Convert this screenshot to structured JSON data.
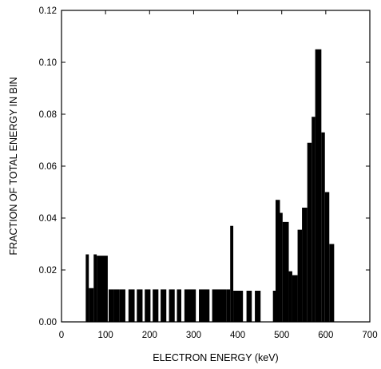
{
  "chart_data": {
    "type": "bar",
    "title": "",
    "xlabel": "ELECTRON ENERGY (keV)",
    "ylabel": "FRACTION OF TOTAL ENERGY IN BIN",
    "xlim": [
      0,
      700
    ],
    "ylim": [
      0,
      0.12
    ],
    "xticks": [
      "0",
      "100",
      "200",
      "300",
      "400",
      "500",
      "600",
      "700"
    ],
    "yticks": [
      "0.00",
      "0.02",
      "0.04",
      "0.06",
      "0.08",
      "0.10",
      "0.12"
    ],
    "grid": false,
    "bar_color": "#000000",
    "bins": [
      {
        "x0": 55,
        "x1": 62,
        "value": 0.026
      },
      {
        "x0": 62,
        "x1": 73,
        "value": 0.013
      },
      {
        "x0": 73,
        "x1": 80,
        "value": 0.026
      },
      {
        "x0": 80,
        "x1": 105,
        "value": 0.0255
      },
      {
        "x0": 107,
        "x1": 118,
        "value": 0.0125
      },
      {
        "x0": 118,
        "x1": 132,
        "value": 0.0125
      },
      {
        "x0": 132,
        "x1": 145,
        "value": 0.0125
      },
      {
        "x0": 152,
        "x1": 166,
        "value": 0.0125
      },
      {
        "x0": 171,
        "x1": 184,
        "value": 0.0125
      },
      {
        "x0": 189,
        "x1": 202,
        "value": 0.0125
      },
      {
        "x0": 207,
        "x1": 220,
        "value": 0.0125
      },
      {
        "x0": 225,
        "x1": 238,
        "value": 0.0125
      },
      {
        "x0": 244,
        "x1": 257,
        "value": 0.0125
      },
      {
        "x0": 262,
        "x1": 272,
        "value": 0.0125
      },
      {
        "x0": 279,
        "x1": 305,
        "value": 0.0125
      },
      {
        "x0": 312,
        "x1": 336,
        "value": 0.0125
      },
      {
        "x0": 342,
        "x1": 375,
        "value": 0.0125
      },
      {
        "x0": 375,
        "x1": 383,
        "value": 0.0125
      },
      {
        "x0": 383,
        "x1": 390,
        "value": 0.037
      },
      {
        "x0": 390,
        "x1": 412,
        "value": 0.012
      },
      {
        "x0": 420,
        "x1": 432,
        "value": 0.012
      },
      {
        "x0": 439,
        "x1": 452,
        "value": 0.012
      },
      {
        "x0": 480,
        "x1": 486,
        "value": 0.012
      },
      {
        "x0": 486,
        "x1": 496,
        "value": 0.047
      },
      {
        "x0": 496,
        "x1": 502,
        "value": 0.042
      },
      {
        "x0": 502,
        "x1": 516,
        "value": 0.0385
      },
      {
        "x0": 516,
        "x1": 524,
        "value": 0.0195
      },
      {
        "x0": 524,
        "x1": 536,
        "value": 0.018
      },
      {
        "x0": 536,
        "x1": 546,
        "value": 0.0355
      },
      {
        "x0": 546,
        "x1": 558,
        "value": 0.044
      },
      {
        "x0": 558,
        "x1": 568,
        "value": 0.069
      },
      {
        "x0": 568,
        "x1": 576,
        "value": 0.079
      },
      {
        "x0": 576,
        "x1": 590,
        "value": 0.105
      },
      {
        "x0": 590,
        "x1": 598,
        "value": 0.073
      },
      {
        "x0": 598,
        "x1": 608,
        "value": 0.05
      },
      {
        "x0": 608,
        "x1": 619,
        "value": 0.03
      }
    ]
  }
}
